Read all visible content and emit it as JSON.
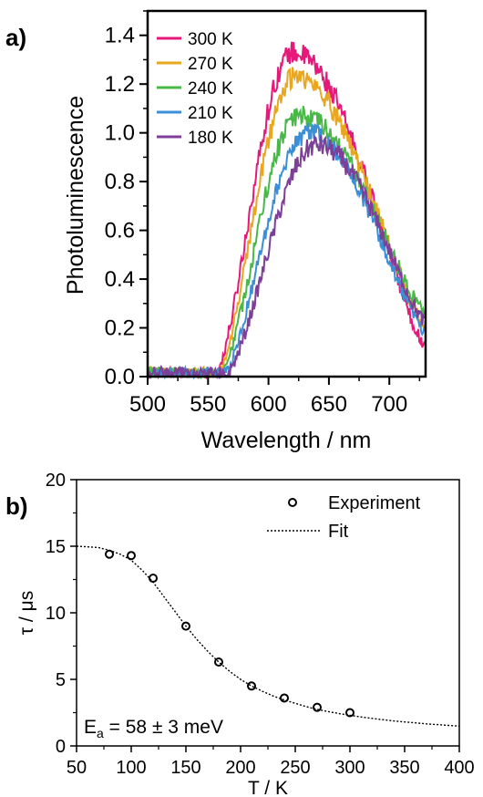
{
  "chart_data": [
    {
      "panel": "a)",
      "type": "line",
      "xlabel": "Wavelength / nm",
      "ylabel": "Photoluminescence",
      "xlim": [
        500,
        730
      ],
      "ylim": [
        0.0,
        1.5
      ],
      "xticks": [
        500,
        550,
        600,
        650,
        700
      ],
      "yticks": [
        0.0,
        0.2,
        0.4,
        0.6,
        0.8,
        1.0,
        1.2,
        1.4
      ],
      "ytick_labels": [
        "0.0",
        "0.2",
        "0.4",
        "0.6",
        "0.8",
        "1.0",
        "1.2",
        "1.4"
      ],
      "legend_position": "top-left",
      "series": [
        {
          "name": "300 K",
          "color": "#e5197a",
          "onset": 555,
          "peak_x": 620,
          "peak_y": 1.33,
          "end_y": 0.12,
          "rise_width": 28,
          "fall_width": 62
        },
        {
          "name": "270 K",
          "color": "#e8a71e",
          "onset": 557,
          "peak_x": 622,
          "peak_y": 1.23,
          "end_y": 0.2,
          "rise_width": 30,
          "fall_width": 66
        },
        {
          "name": "240 K",
          "color": "#49b848",
          "onset": 559,
          "peak_x": 625,
          "peak_y": 1.07,
          "end_y": 0.26,
          "rise_width": 32,
          "fall_width": 72
        },
        {
          "name": "210 K",
          "color": "#3b8fd6",
          "onset": 561,
          "peak_x": 632,
          "peak_y": 1.0,
          "end_y": 0.18,
          "rise_width": 35,
          "fall_width": 72
        },
        {
          "name": "180 K",
          "color": "#7e3f98",
          "onset": 563,
          "peak_x": 640,
          "peak_y": 0.95,
          "end_y": 0.22,
          "rise_width": 38,
          "fall_width": 76
        }
      ]
    },
    {
      "panel": "b)",
      "type": "scatter",
      "xlabel": "T / K",
      "ylabel": "τ / μs",
      "xlim": [
        50,
        400
      ],
      "ylim": [
        0,
        20
      ],
      "xticks": [
        50,
        100,
        150,
        200,
        250,
        300,
        350,
        400
      ],
      "yticks": [
        0,
        5,
        10,
        15,
        20
      ],
      "legend_position": "top-right",
      "annotation": {
        "main": "E",
        "sub": "a",
        "rest": " = 58 ± 3 meV"
      },
      "series": [
        {
          "name": "Experiment",
          "kind": "points",
          "x": [
            80,
            100,
            120,
            150,
            180,
            210,
            240,
            270,
            300
          ],
          "y": [
            14.4,
            14.3,
            12.6,
            9.0,
            6.3,
            4.5,
            3.6,
            2.9,
            2.5
          ]
        },
        {
          "name": "Fit",
          "kind": "dotted-line",
          "x": [
            50,
            60,
            70,
            80,
            90,
            100,
            110,
            120,
            130,
            140,
            150,
            160,
            170,
            180,
            190,
            200,
            210,
            220,
            230,
            240,
            250,
            260,
            270,
            280,
            290,
            300,
            310,
            320,
            330,
            340,
            350,
            360,
            370,
            380,
            390,
            400
          ],
          "y": [
            15.0,
            14.95,
            14.9,
            14.7,
            14.4,
            13.95,
            13.2,
            12.3,
            11.2,
            10.1,
            9.0,
            8.0,
            7.1,
            6.3,
            5.6,
            5.0,
            4.5,
            4.1,
            3.75,
            3.45,
            3.2,
            2.95,
            2.75,
            2.58,
            2.43,
            2.3,
            2.18,
            2.07,
            1.97,
            1.88,
            1.8,
            1.73,
            1.66,
            1.6,
            1.54,
            1.49
          ]
        }
      ]
    }
  ]
}
